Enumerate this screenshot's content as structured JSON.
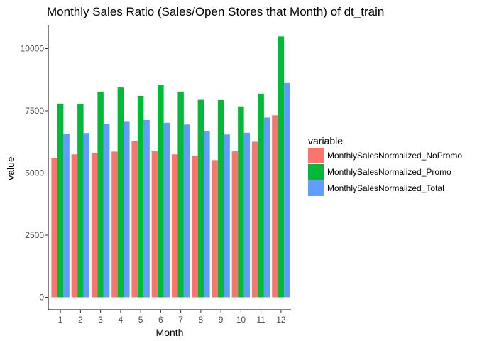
{
  "chart_data": {
    "type": "bar",
    "title": "Monthly Sales Ratio (Sales/Open Stores that Month) of dt_train",
    "xlabel": "Month",
    "ylabel": "value",
    "categories": [
      "1",
      "2",
      "3",
      "4",
      "5",
      "6",
      "7",
      "8",
      "9",
      "10",
      "11",
      "12"
    ],
    "ylim": [
      0,
      11000
    ],
    "yticks": [
      "0",
      "2500",
      "5000",
      "7500",
      "10000"
    ],
    "grid": false,
    "legend": {
      "title": "variable",
      "placement": "right"
    },
    "series": [
      {
        "name": "MonthlySalesNormalized_NoPromo",
        "color": "#f8766d",
        "values": [
          5600,
          5750,
          5800,
          5860,
          6290,
          5870,
          5750,
          5690,
          5520,
          5870,
          6260,
          7320
        ]
      },
      {
        "name": "MonthlySalesNormalized_Promo",
        "color": "#00ba38",
        "values": [
          7790,
          7780,
          8270,
          8440,
          8100,
          8530,
          8270,
          7940,
          7930,
          7680,
          8190,
          10490
        ]
      },
      {
        "name": "MonthlySalesNormalized_Total",
        "color": "#619cff",
        "values": [
          6580,
          6610,
          6980,
          7060,
          7130,
          7020,
          6950,
          6670,
          6550,
          6620,
          7230,
          8620
        ]
      }
    ]
  }
}
